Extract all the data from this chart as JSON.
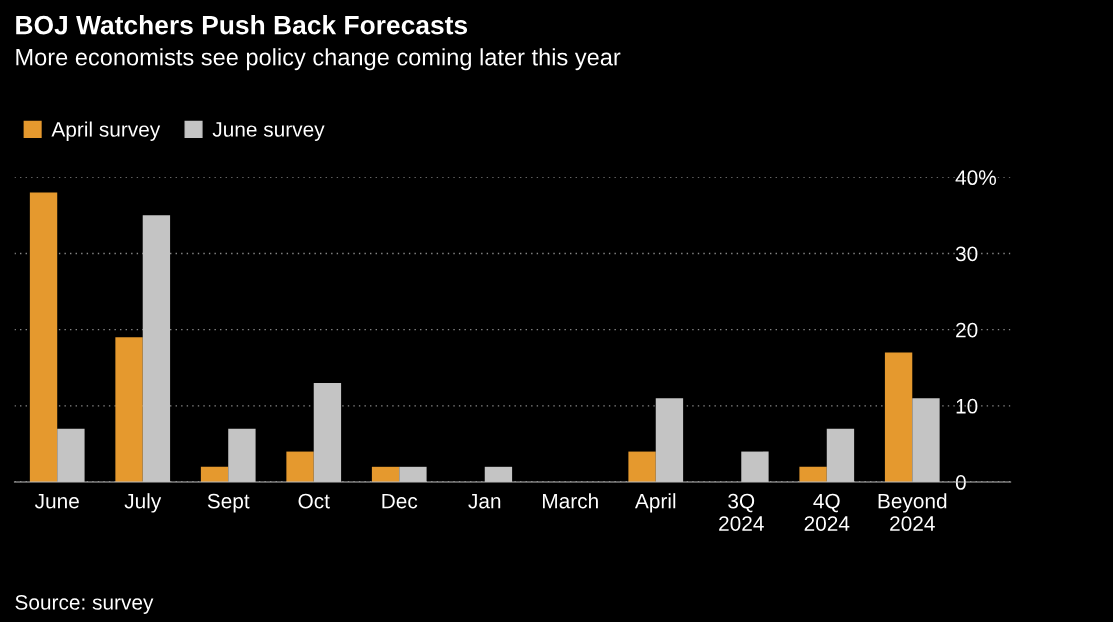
{
  "chart_data": {
    "type": "bar",
    "title": "BOJ Watchers Push Back Forecasts",
    "subtitle": "More economists see policy change coming later this year",
    "categories": [
      "June",
      "July",
      "Sept",
      "Oct",
      "Dec",
      "Jan",
      "March",
      "April",
      "3Q\n2024",
      "4Q\n2024",
      "Beyond\n2024"
    ],
    "series": [
      {
        "name": "April survey",
        "color": "#e5992e",
        "values": [
          38,
          19,
          2,
          4,
          2,
          0,
          0,
          4,
          0,
          2,
          17
        ]
      },
      {
        "name": "June survey",
        "color": "#c4c4c4",
        "values": [
          7,
          35,
          7,
          13,
          2,
          2,
          0,
          11,
          4,
          7,
          11
        ]
      }
    ],
    "ylim": [
      0,
      40
    ],
    "yticks": [
      0,
      10,
      20,
      30,
      {
        "value": 40,
        "label": "40%"
      }
    ],
    "grid": "y",
    "legend": "top left",
    "annotations": [
      "Source: survey"
    ]
  }
}
